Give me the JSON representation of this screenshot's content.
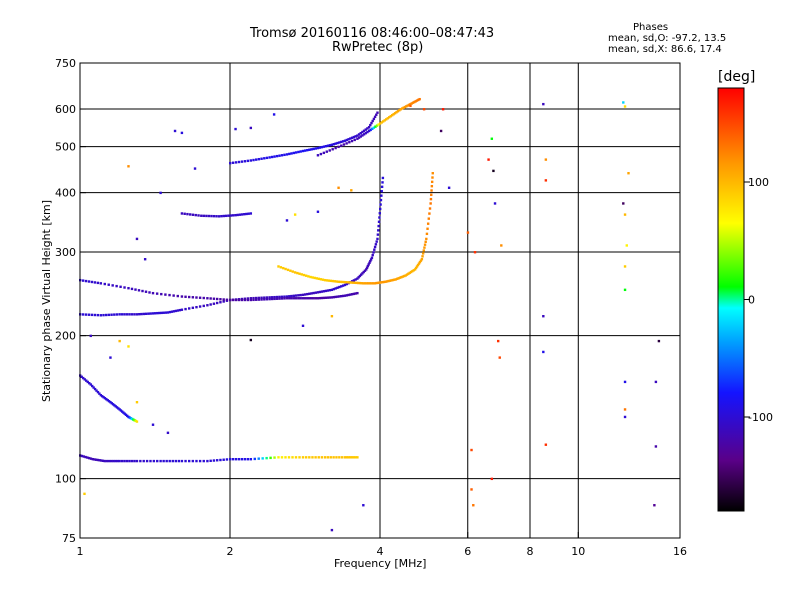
{
  "title": {
    "line1": "Tromsø 20160116 08:46:00–08:47:43",
    "line2": "RwPretec (8p)"
  },
  "phases_box": {
    "heading": "Phases",
    "line_o": "mean, sd,O:  -97.2, 13.5",
    "line_x": "mean, sd,X:  86.6, 17.4"
  },
  "chart_data": {
    "type": "scatter",
    "title": "Tromsø 20160116 08:46:00–08:47:43",
    "subtitle": "RwPretec (8p)",
    "xlabel": "Frequency [MHz]",
    "ylabel": "Stationary phase Virtual Height [km]",
    "x_scale": "log",
    "y_scale": "log",
    "xlim": [
      1,
      16
    ],
    "ylim": [
      75,
      750
    ],
    "x_ticks": [
      1,
      2,
      4,
      6,
      8,
      10,
      16
    ],
    "x_tick_labels": [
      "1",
      "2",
      "4",
      "6",
      "8",
      "10",
      "16"
    ],
    "x_grid": [
      2,
      4,
      6,
      8,
      10
    ],
    "y_ticks": [
      75,
      100,
      200,
      300,
      400,
      500,
      600,
      750
    ],
    "y_tick_labels": [
      "75",
      "100",
      "200",
      "300",
      "400",
      "500",
      "600",
      "750"
    ],
    "y_grid": [
      100,
      200,
      300,
      400,
      500,
      600
    ],
    "grid": true,
    "colorbar": {
      "label": "[deg]",
      "range": [
        -180,
        180
      ],
      "ticks": [
        100,
        0,
        -100
      ],
      "tick_labels": [
        "100",
        "0",
        "-100"
      ],
      "placement": "right"
    },
    "traces": [
      {
        "x": [
          1.0,
          1.06,
          1.12,
          1.2,
          1.3,
          1.45,
          1.6,
          1.8,
          2.0,
          2.2,
          2.5,
          2.8,
          3.1,
          3.4,
          3.6
        ],
        "y": [
          112,
          110,
          109,
          109,
          109,
          109,
          109,
          109,
          110,
          110,
          111,
          111,
          111,
          111,
          111
        ],
        "phase": [
          -110,
          -115,
          -110,
          -105,
          -105,
          -100,
          -100,
          -100,
          -95,
          -90,
          70,
          90,
          95,
          95,
          90
        ]
      },
      {
        "x": [
          1.0,
          1.1,
          1.2,
          1.3,
          1.4,
          1.5,
          1.6,
          1.8,
          2.0,
          2.2,
          2.4,
          2.6,
          2.8,
          3.0,
          3.2,
          3.4,
          3.6,
          3.75,
          3.85,
          3.95,
          4.0,
          4.05
        ],
        "y": [
          222,
          221,
          222,
          222,
          223,
          224,
          227,
          232,
          238,
          240,
          241,
          242,
          244,
          247,
          250,
          256,
          264,
          276,
          292,
          320,
          370,
          430
        ],
        "phase": [
          -100,
          -100,
          -100,
          -105,
          -100,
          -100,
          -105,
          -110,
          -110,
          -115,
          -110,
          -105,
          -110,
          -110,
          -105,
          -100,
          -110,
          -115,
          -110,
          -105,
          -100,
          -95
        ]
      },
      {
        "x": [
          1.0,
          1.1,
          1.25,
          1.4,
          1.6,
          1.8,
          2.0,
          2.2,
          2.4,
          2.6,
          2.8,
          3.0,
          3.2,
          3.4,
          3.6
        ],
        "y": [
          262,
          258,
          252,
          246,
          242,
          240,
          238,
          238,
          239,
          240,
          240,
          240,
          241,
          243,
          246
        ],
        "phase": [
          -100,
          -105,
          -110,
          -115,
          -120,
          -120,
          -125,
          -120,
          -115,
          -120,
          -120,
          -125,
          -120,
          -115,
          -120
        ]
      },
      {
        "x": [
          2.5,
          2.7,
          2.9,
          3.1,
          3.3,
          3.5,
          3.7,
          3.9,
          4.1,
          4.3,
          4.5,
          4.7,
          4.85,
          4.95,
          5.05,
          5.1
        ],
        "y": [
          280,
          272,
          266,
          262,
          260,
          259,
          258,
          258,
          260,
          263,
          268,
          276,
          290,
          320,
          380,
          440
        ],
        "phase": [
          90,
          95,
          85,
          90,
          95,
          100,
          110,
          115,
          115,
          110,
          105,
          100,
          110,
          120,
          130,
          120
        ]
      },
      {
        "x": [
          2.0,
          2.2,
          2.4,
          2.6,
          2.8,
          3.0,
          3.2,
          3.4,
          3.6,
          3.8,
          3.95
        ],
        "y": [
          462,
          468,
          475,
          482,
          490,
          497,
          505,
          515,
          528,
          550,
          590
        ],
        "phase": [
          -100,
          -95,
          -90,
          -90,
          -85,
          -90,
          -95,
          -100,
          -105,
          -110,
          -115
        ]
      },
      {
        "x": [
          3.0,
          3.3,
          3.6,
          3.8,
          4.0,
          4.2,
          4.4,
          4.6,
          4.8
        ],
        "y": [
          480,
          500,
          520,
          540,
          560,
          580,
          600,
          615,
          630
        ],
        "phase": [
          -110,
          -120,
          -115,
          -105,
          95,
          100,
          110,
          120,
          130
        ]
      },
      {
        "x": [
          1.6,
          1.75,
          1.9,
          2.05,
          2.2
        ],
        "y": [
          362,
          358,
          357,
          359,
          362
        ],
        "phase": [
          -110,
          -110,
          -105,
          -105,
          -100
        ]
      },
      {
        "x": [
          1.0,
          1.05,
          1.1,
          1.15,
          1.2,
          1.25,
          1.3
        ],
        "y": [
          165,
          158,
          150,
          145,
          140,
          135,
          132
        ],
        "phase": [
          -105,
          -100,
          -100,
          -95,
          -95,
          -90,
          80
        ]
      }
    ],
    "scattered_points": [
      {
        "x": 1.55,
        "y": 540,
        "phase": -100
      },
      {
        "x": 1.6,
        "y": 535,
        "phase": -95
      },
      {
        "x": 2.05,
        "y": 545,
        "phase": -100
      },
      {
        "x": 2.45,
        "y": 585,
        "phase": -90
      },
      {
        "x": 2.2,
        "y": 548,
        "phase": -110
      },
      {
        "x": 1.7,
        "y": 450,
        "phase": -100
      },
      {
        "x": 1.25,
        "y": 455,
        "phase": 120
      },
      {
        "x": 1.45,
        "y": 400,
        "phase": -100
      },
      {
        "x": 1.3,
        "y": 320,
        "phase": -110
      },
      {
        "x": 1.35,
        "y": 290,
        "phase": -105
      },
      {
        "x": 1.2,
        "y": 195,
        "phase": 100
      },
      {
        "x": 1.25,
        "y": 190,
        "phase": 80
      },
      {
        "x": 1.05,
        "y": 200,
        "phase": -110
      },
      {
        "x": 1.15,
        "y": 180,
        "phase": -100
      },
      {
        "x": 1.3,
        "y": 145,
        "phase": 90
      },
      {
        "x": 1.4,
        "y": 130,
        "phase": -100
      },
      {
        "x": 1.5,
        "y": 125,
        "phase": -105
      },
      {
        "x": 1.02,
        "y": 93,
        "phase": 90
      },
      {
        "x": 3.3,
        "y": 410,
        "phase": 120
      },
      {
        "x": 3.5,
        "y": 405,
        "phase": 110
      },
      {
        "x": 2.6,
        "y": 350,
        "phase": -100
      },
      {
        "x": 2.7,
        "y": 360,
        "phase": 80
      },
      {
        "x": 3.0,
        "y": 365,
        "phase": -95
      },
      {
        "x": 2.8,
        "y": 210,
        "phase": -100
      },
      {
        "x": 2.2,
        "y": 196,
        "phase": -170
      },
      {
        "x": 3.2,
        "y": 220,
        "phase": 100
      },
      {
        "x": 3.7,
        "y": 88,
        "phase": -100
      },
      {
        "x": 3.2,
        "y": 78,
        "phase": -110
      },
      {
        "x": 4.6,
        "y": 610,
        "phase": 140
      },
      {
        "x": 4.9,
        "y": 600,
        "phase": 150
      },
      {
        "x": 5.35,
        "y": 600,
        "phase": 170
      },
      {
        "x": 5.3,
        "y": 540,
        "phase": -150
      },
      {
        "x": 5.5,
        "y": 410,
        "phase": -100
      },
      {
        "x": 6.0,
        "y": 330,
        "phase": 140
      },
      {
        "x": 6.2,
        "y": 300,
        "phase": 160
      },
      {
        "x": 6.6,
        "y": 470,
        "phase": 170
      },
      {
        "x": 6.7,
        "y": 520,
        "phase": 10
      },
      {
        "x": 6.75,
        "y": 445,
        "phase": -170
      },
      {
        "x": 6.8,
        "y": 380,
        "phase": -100
      },
      {
        "x": 7.0,
        "y": 310,
        "phase": 120
      },
      {
        "x": 6.9,
        "y": 195,
        "phase": 160
      },
      {
        "x": 6.95,
        "y": 180,
        "phase": 150
      },
      {
        "x": 6.7,
        "y": 100,
        "phase": 170
      },
      {
        "x": 6.1,
        "y": 95,
        "phase": 140
      },
      {
        "x": 6.15,
        "y": 88,
        "phase": 130
      },
      {
        "x": 6.1,
        "y": 115,
        "phase": 150
      },
      {
        "x": 8.5,
        "y": 615,
        "phase": -110
      },
      {
        "x": 8.6,
        "y": 470,
        "phase": 120
      },
      {
        "x": 8.6,
        "y": 425,
        "phase": 160
      },
      {
        "x": 8.5,
        "y": 220,
        "phase": -110
      },
      {
        "x": 8.5,
        "y": 185,
        "phase": -90
      },
      {
        "x": 8.6,
        "y": 118,
        "phase": 160
      },
      {
        "x": 12.3,
        "y": 620,
        "phase": -20
      },
      {
        "x": 12.4,
        "y": 608,
        "phase": 80
      },
      {
        "x": 12.6,
        "y": 440,
        "phase": 110
      },
      {
        "x": 12.3,
        "y": 380,
        "phase": -150
      },
      {
        "x": 12.4,
        "y": 360,
        "phase": 100
      },
      {
        "x": 12.5,
        "y": 310,
        "phase": 70
      },
      {
        "x": 12.4,
        "y": 280,
        "phase": 90
      },
      {
        "x": 12.4,
        "y": 250,
        "phase": 10
      },
      {
        "x": 12.4,
        "y": 160,
        "phase": -90
      },
      {
        "x": 12.4,
        "y": 140,
        "phase": 130
      },
      {
        "x": 12.4,
        "y": 135,
        "phase": -100
      },
      {
        "x": 14.5,
        "y": 195,
        "phase": -160
      },
      {
        "x": 14.3,
        "y": 160,
        "phase": -110
      },
      {
        "x": 14.3,
        "y": 117,
        "phase": -120
      },
      {
        "x": 14.2,
        "y": 88,
        "phase": -130
      }
    ]
  }
}
